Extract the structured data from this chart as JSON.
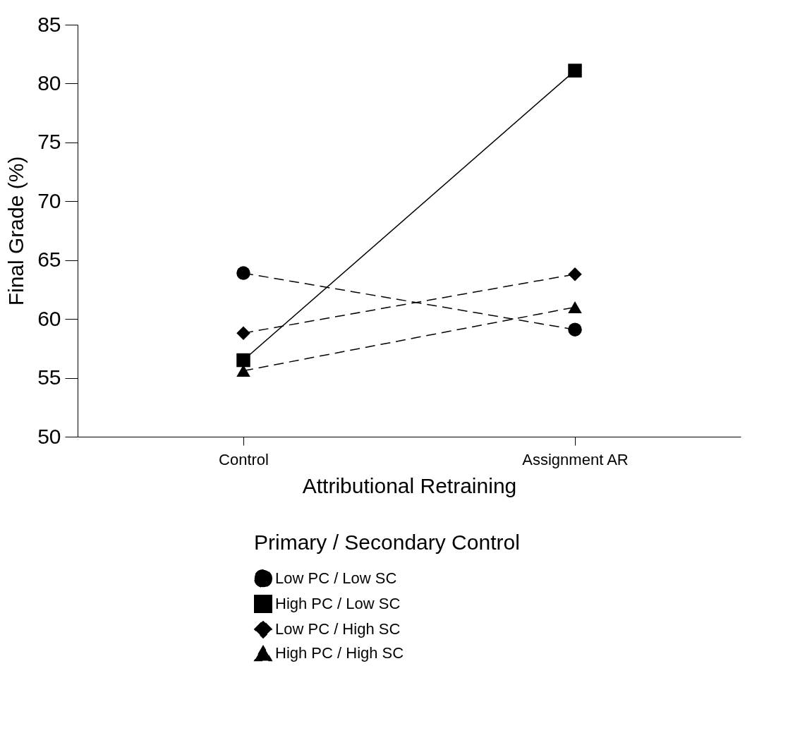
{
  "chart_data": {
    "type": "line",
    "xlabel": "Attributional Retraining",
    "ylabel": "Final Grade (%)",
    "legend_title": "Primary / Secondary Control",
    "categories": [
      "Control",
      "Assignment AR"
    ],
    "series": [
      {
        "name": "Low PC / Low SC",
        "color": "#000000",
        "values": [
          63.9,
          59.1
        ],
        "marker": "circle",
        "line_style": "dashed"
      },
      {
        "name": "High PC / Low SC",
        "color": "#000000",
        "values": [
          56.5,
          81.1
        ],
        "marker": "square",
        "line_style": "solid"
      },
      {
        "name": "Low PC / High SC",
        "color": "#000000",
        "values": [
          58.8,
          63.8
        ],
        "marker": "diamond",
        "line_style": "dashed"
      },
      {
        "name": "High PC / High SC",
        "color": "#000000",
        "values": [
          55.6,
          61.0
        ],
        "marker": "triangle",
        "line_style": "dashed"
      }
    ],
    "ylim": [
      50,
      85
    ],
    "yticks": [
      50,
      55,
      60,
      65,
      70,
      75,
      80,
      85
    ],
    "grid": false,
    "legend": "bottom"
  }
}
